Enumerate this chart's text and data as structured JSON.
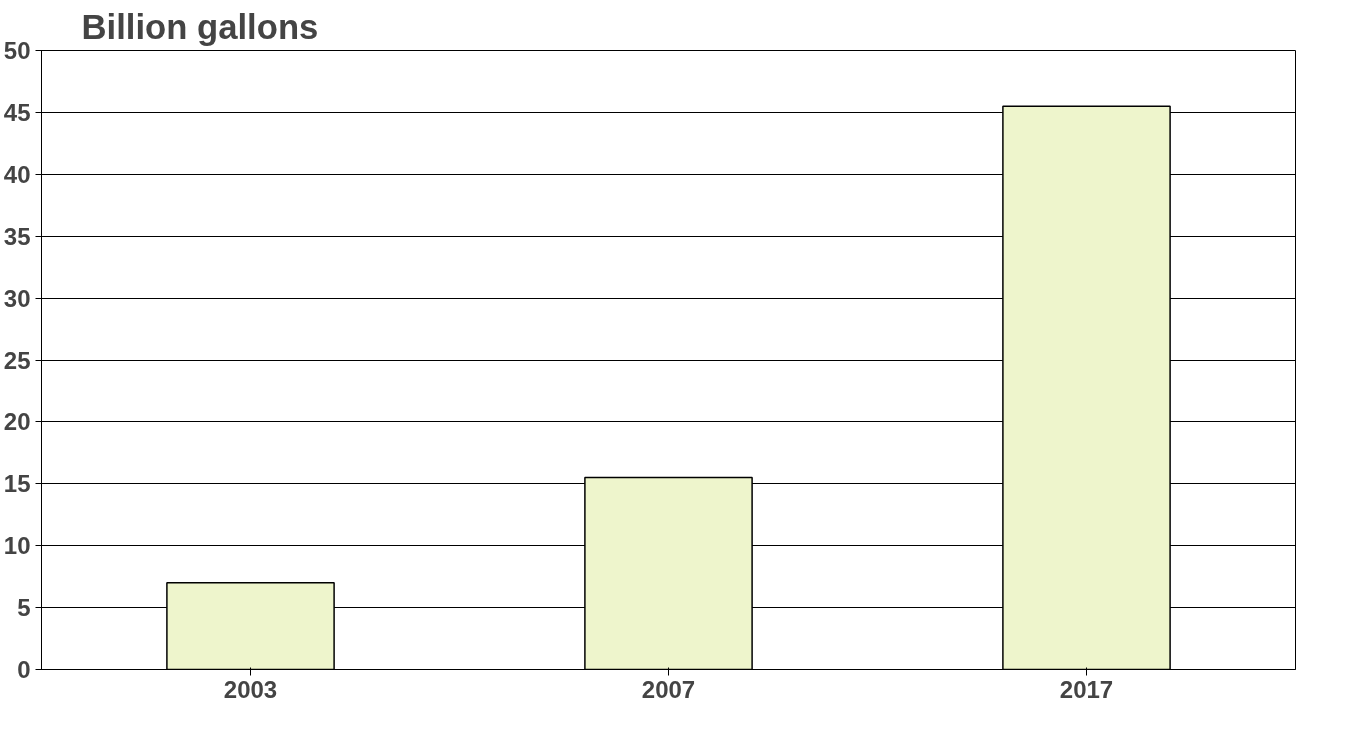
{
  "chart_data": {
    "type": "bar",
    "title": "Billion gallons",
    "categories": [
      "2003",
      "2007",
      "2017"
    ],
    "values": [
      7,
      15.5,
      45.5
    ],
    "color": "#eef5cc",
    "ylim": [
      0,
      50
    ],
    "yticks": [
      0,
      5,
      10,
      15,
      20,
      25,
      30,
      35,
      40,
      45,
      50
    ],
    "grid": "y"
  }
}
